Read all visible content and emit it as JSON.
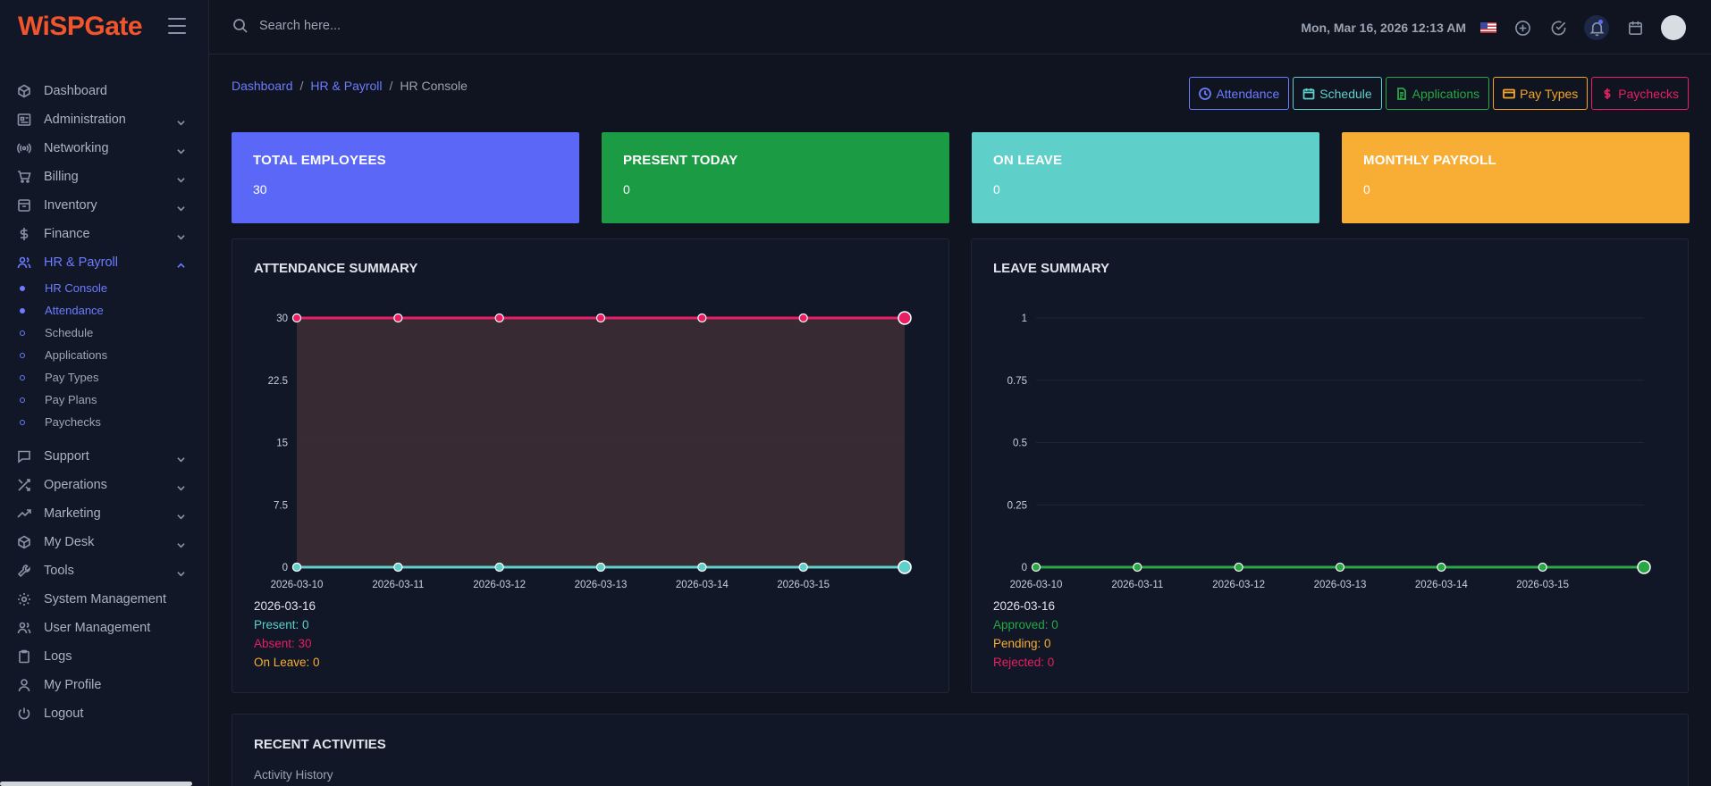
{
  "app": {
    "logo": "WiSPGate"
  },
  "topbar": {
    "search_placeholder": "Search here...",
    "datetime": "Mon, Mar 16, 2026 12:13 AM"
  },
  "sidebar": {
    "items": [
      {
        "label": "Dashboard",
        "icon": "dashboard-icon"
      },
      {
        "label": "Administration",
        "icon": "administration-icon"
      },
      {
        "label": "Networking",
        "icon": "networking-icon"
      },
      {
        "label": "Billing",
        "icon": "cart-icon"
      },
      {
        "label": "Inventory",
        "icon": "inventory-icon"
      },
      {
        "label": "Finance",
        "icon": "dollar-icon"
      },
      {
        "label": "HR & Payroll",
        "icon": "users-icon"
      }
    ],
    "hr_sub": [
      {
        "label": "HR Console"
      },
      {
        "label": "Attendance"
      },
      {
        "label": "Schedule"
      },
      {
        "label": "Applications"
      },
      {
        "label": "Pay Types"
      },
      {
        "label": "Pay Plans"
      },
      {
        "label": "Paychecks"
      }
    ],
    "items_after": [
      {
        "label": "Support",
        "icon": "chat-icon"
      },
      {
        "label": "Operations",
        "icon": "shuffle-icon"
      },
      {
        "label": "Marketing",
        "icon": "trending-icon"
      },
      {
        "label": "My Desk",
        "icon": "box-icon"
      },
      {
        "label": "Tools",
        "icon": "wrench-icon"
      },
      {
        "label": "System Management",
        "icon": "gear-icon"
      },
      {
        "label": "User Management",
        "icon": "users-icon"
      },
      {
        "label": "Logs",
        "icon": "clipboard-icon"
      },
      {
        "label": "My Profile",
        "icon": "user-icon"
      },
      {
        "label": "Logout",
        "icon": "power-icon"
      }
    ]
  },
  "breadcrumb": {
    "home": "Dashboard",
    "section": "HR & Payroll",
    "current": "HR Console"
  },
  "actions": {
    "attendance": "Attendance",
    "schedule": "Schedule",
    "applications": "Applications",
    "pay_types": "Pay Types",
    "paychecks": "Paychecks"
  },
  "stats": [
    {
      "title": "TOTAL EMPLOYEES",
      "value": "30",
      "color": "#5b67f7"
    },
    {
      "title": "PRESENT TODAY",
      "value": "0",
      "color": "#1c9b45"
    },
    {
      "title": "ON LEAVE",
      "value": "0",
      "color": "#5ecfc9"
    },
    {
      "title": "MONTHLY PAYROLL",
      "value": "0",
      "color": "#f8ad34"
    }
  ],
  "attendance_card": {
    "title": "ATTENDANCE SUMMARY",
    "legend_date": "2026-03-16",
    "present": "Present: 0",
    "absent": "Absent: 30",
    "on_leave": "On Leave: 0"
  },
  "leave_card": {
    "title": "LEAVE SUMMARY",
    "legend_date": "2026-03-16",
    "approved": "Approved: 0",
    "pending": "Pending: 0",
    "rejected": "Rejected: 0"
  },
  "chart_data": [
    {
      "type": "area",
      "title": "ATTENDANCE SUMMARY",
      "x": [
        "2026-03-10",
        "2026-03-11",
        "2026-03-12",
        "2026-03-13",
        "2026-03-14",
        "2026-03-15",
        "2026-03-16"
      ],
      "x_tick_labels": [
        "2026-03-10",
        "2026-03-11",
        "2026-03-12",
        "2026-03-13",
        "2026-03-14",
        "2026-03-15"
      ],
      "y_ticks": [
        "0",
        "7.5",
        "15",
        "22.5",
        "30"
      ],
      "ylim": [
        0,
        30
      ],
      "series": [
        {
          "values": [
            30,
            30,
            30,
            30,
            30,
            30,
            30
          ],
          "color": "#e91e63"
        },
        {
          "values": [
            0,
            0,
            0,
            0,
            0,
            0,
            0
          ],
          "color": "#5ecfc9"
        },
        {
          "values": [
            0,
            0,
            0,
            0,
            0,
            0,
            0
          ],
          "color": "#f8ad34"
        }
      ],
      "grid": true
    },
    {
      "type": "line",
      "title": "LEAVE SUMMARY",
      "x": [
        "2026-03-10",
        "2026-03-11",
        "2026-03-12",
        "2026-03-13",
        "2026-03-14",
        "2026-03-15",
        "2026-03-16"
      ],
      "x_tick_labels": [
        "2026-03-10",
        "2026-03-11",
        "2026-03-12",
        "2026-03-13",
        "2026-03-14",
        "2026-03-15"
      ],
      "y_ticks": [
        "0",
        "0.25",
        "0.5",
        "0.75",
        "1"
      ],
      "ylim": [
        0,
        1
      ],
      "series": [
        {
          "values": [
            0,
            0,
            0,
            0,
            0,
            0,
            0
          ],
          "color": "#28a745"
        }
      ],
      "grid": true
    }
  ],
  "recent": {
    "title": "RECENT ACTIVITIES",
    "subtitle": "Activity History"
  },
  "colors": {
    "accent": "#6c7cff",
    "background": "#0f1420",
    "panel": "#111726"
  }
}
